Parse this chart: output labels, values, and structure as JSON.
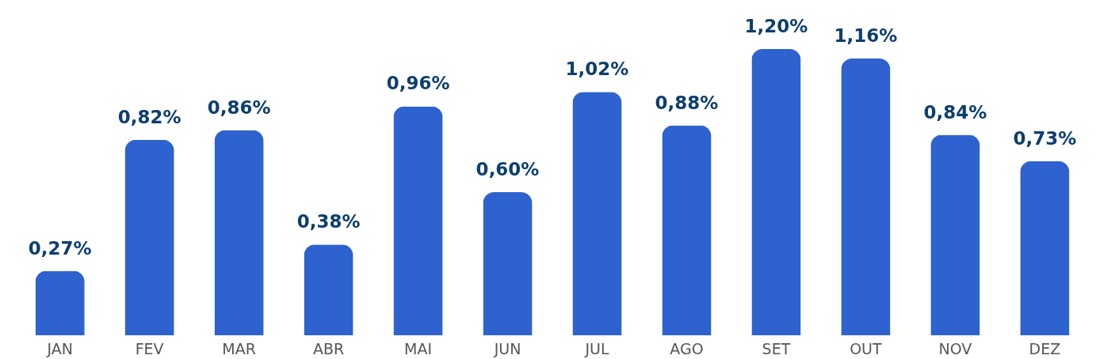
{
  "chart_data": {
    "type": "bar",
    "categories": [
      "JAN",
      "FEV",
      "MAR",
      "ABR",
      "MAI",
      "JUN",
      "JUL",
      "AGO",
      "SET",
      "OUT",
      "NOV",
      "DEZ"
    ],
    "values": [
      0.27,
      0.82,
      0.86,
      0.38,
      0.96,
      0.6,
      1.02,
      0.88,
      1.2,
      1.16,
      0.84,
      0.73
    ],
    "value_labels": [
      "0,27%",
      "0,82%",
      "0,86%",
      "0,38%",
      "0,96%",
      "0,60%",
      "1,02%",
      "0,88%",
      "1,20%",
      "1,16%",
      "0,84%",
      "0,73%"
    ],
    "color": "#2d62cf",
    "grid": false
  }
}
